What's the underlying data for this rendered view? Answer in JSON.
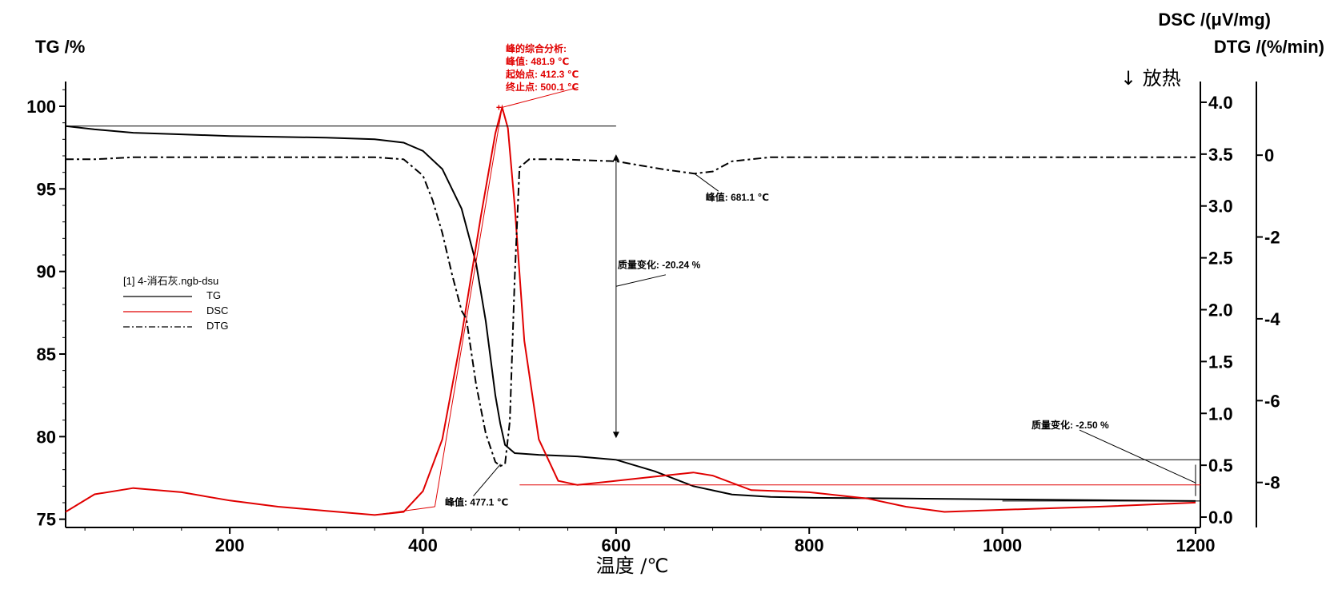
{
  "chart_data": {
    "type": "line",
    "xlabel": "温度 /℃",
    "ylabel_left": "TG /%",
    "ylabel_right1": "DSC /(μV/mg)",
    "ylabel_right2": "DTG /(%/min)",
    "exo_label": "↓ 放热",
    "xlim": [
      30,
      1205
    ],
    "x_ticks": [
      "200",
      "400",
      "600",
      "800",
      "1000",
      "1200"
    ],
    "x_tick_values": [
      200,
      400,
      600,
      800,
      1000,
      1200
    ],
    "tg_axis": {
      "range": [
        74.5,
        101.5
      ],
      "ticks": [
        "75",
        "80",
        "85",
        "90",
        "95",
        "100"
      ],
      "tick_values": [
        75,
        80,
        85,
        90,
        95,
        100
      ]
    },
    "dsc_axis": {
      "range": [
        -0.1,
        4.2
      ],
      "ticks": [
        "0.0",
        "0.5",
        "1.0",
        "1.5",
        "2.0",
        "2.5",
        "3.0",
        "3.5",
        "4.0"
      ],
      "tick_values": [
        0.0,
        0.5,
        1.0,
        1.5,
        2.0,
        2.5,
        3.0,
        3.5,
        4.0
      ]
    },
    "dtg_axis": {
      "range": [
        -9.1,
        1.8
      ],
      "ticks": [
        "0",
        "-2",
        "-4",
        "-6",
        "-8"
      ],
      "tick_values": [
        0,
        -2,
        -4,
        -6,
        -8
      ]
    },
    "legend": {
      "title": "[1] 4-消石灰.ngb-dsu",
      "entries": [
        "TG",
        "DSC",
        "DTG"
      ]
    },
    "series": [
      {
        "name": "TG",
        "axis": "tg",
        "color": "#000000",
        "style": "solid",
        "x": [
          30,
          60,
          100,
          150,
          200,
          250,
          300,
          350,
          380,
          400,
          420,
          440,
          455,
          465,
          475,
          480,
          485,
          495,
          520,
          560,
          600,
          640,
          680,
          720,
          760,
          800,
          900,
          1000,
          1100,
          1200
        ],
        "y": [
          98.8,
          98.6,
          98.4,
          98.3,
          98.2,
          98.15,
          98.1,
          98.0,
          97.8,
          97.3,
          96.2,
          93.8,
          90.5,
          87.0,
          82.5,
          80.8,
          79.5,
          79.0,
          78.9,
          78.8,
          78.6,
          77.9,
          77.0,
          76.5,
          76.35,
          76.3,
          76.25,
          76.2,
          76.15,
          76.1
        ]
      },
      {
        "name": "DSC",
        "axis": "dsc",
        "color": "#e00000",
        "style": "solid",
        "x": [
          30,
          60,
          100,
          150,
          200,
          250,
          300,
          350,
          380,
          400,
          420,
          440,
          460,
          475,
          482,
          488,
          495,
          505,
          520,
          540,
          560,
          600,
          640,
          680,
          700,
          740,
          800,
          860,
          900,
          940,
          1000,
          1100,
          1200
        ],
        "y": [
          0.05,
          0.22,
          0.28,
          0.24,
          0.16,
          0.1,
          0.06,
          0.02,
          0.05,
          0.25,
          0.75,
          1.75,
          2.9,
          3.7,
          3.95,
          3.75,
          3.0,
          1.7,
          0.75,
          0.35,
          0.31,
          0.35,
          0.39,
          0.43,
          0.4,
          0.26,
          0.24,
          0.18,
          0.1,
          0.05,
          0.07,
          0.1,
          0.14
        ]
      },
      {
        "name": "DTG",
        "axis": "dtg",
        "color": "#000000",
        "style": "dashdot",
        "x": [
          30,
          60,
          100,
          200,
          300,
          350,
          380,
          400,
          410,
          420,
          430,
          440,
          445,
          455,
          465,
          475,
          480,
          485,
          490,
          495,
          500,
          510,
          540,
          600,
          650,
          681,
          700,
          720,
          760,
          800,
          900,
          1000,
          1100,
          1200
        ],
        "y": [
          -0.1,
          -0.1,
          -0.05,
          -0.05,
          -0.05,
          -0.05,
          -0.1,
          -0.5,
          -1.1,
          -1.9,
          -2.9,
          -3.8,
          -4.0,
          -5.6,
          -6.8,
          -7.5,
          -7.6,
          -7.55,
          -6.5,
          -3.0,
          -0.3,
          -0.1,
          -0.1,
          -0.15,
          -0.35,
          -0.45,
          -0.4,
          -0.15,
          -0.05,
          -0.05,
          -0.05,
          -0.05,
          -0.05,
          -0.05
        ]
      }
    ],
    "annotations": {
      "dsc_peak": {
        "lines": [
          "峰的综合分析:",
          "峰值:     481.9 ℃",
          "起始点:  412.3 ℃",
          "终止点:  500.1 ℃"
        ],
        "peak_x": 481.9,
        "onset_x": 412.3,
        "end_x": 500.1
      },
      "dtg_peak1": {
        "label": "峰值: 477.1 ℃",
        "x": 477.1
      },
      "dtg_peak2": {
        "label": "峰值: 681.1 ℃",
        "x": 681.1
      },
      "mass_change1": {
        "label": "质量变化: -20.24 %",
        "x": 600,
        "from": 98.8,
        "to": 78.6
      },
      "mass_change2": {
        "label": "质量变化: -2.50 %",
        "x": 1200,
        "from": 78.6,
        "to": 76.1
      }
    }
  }
}
